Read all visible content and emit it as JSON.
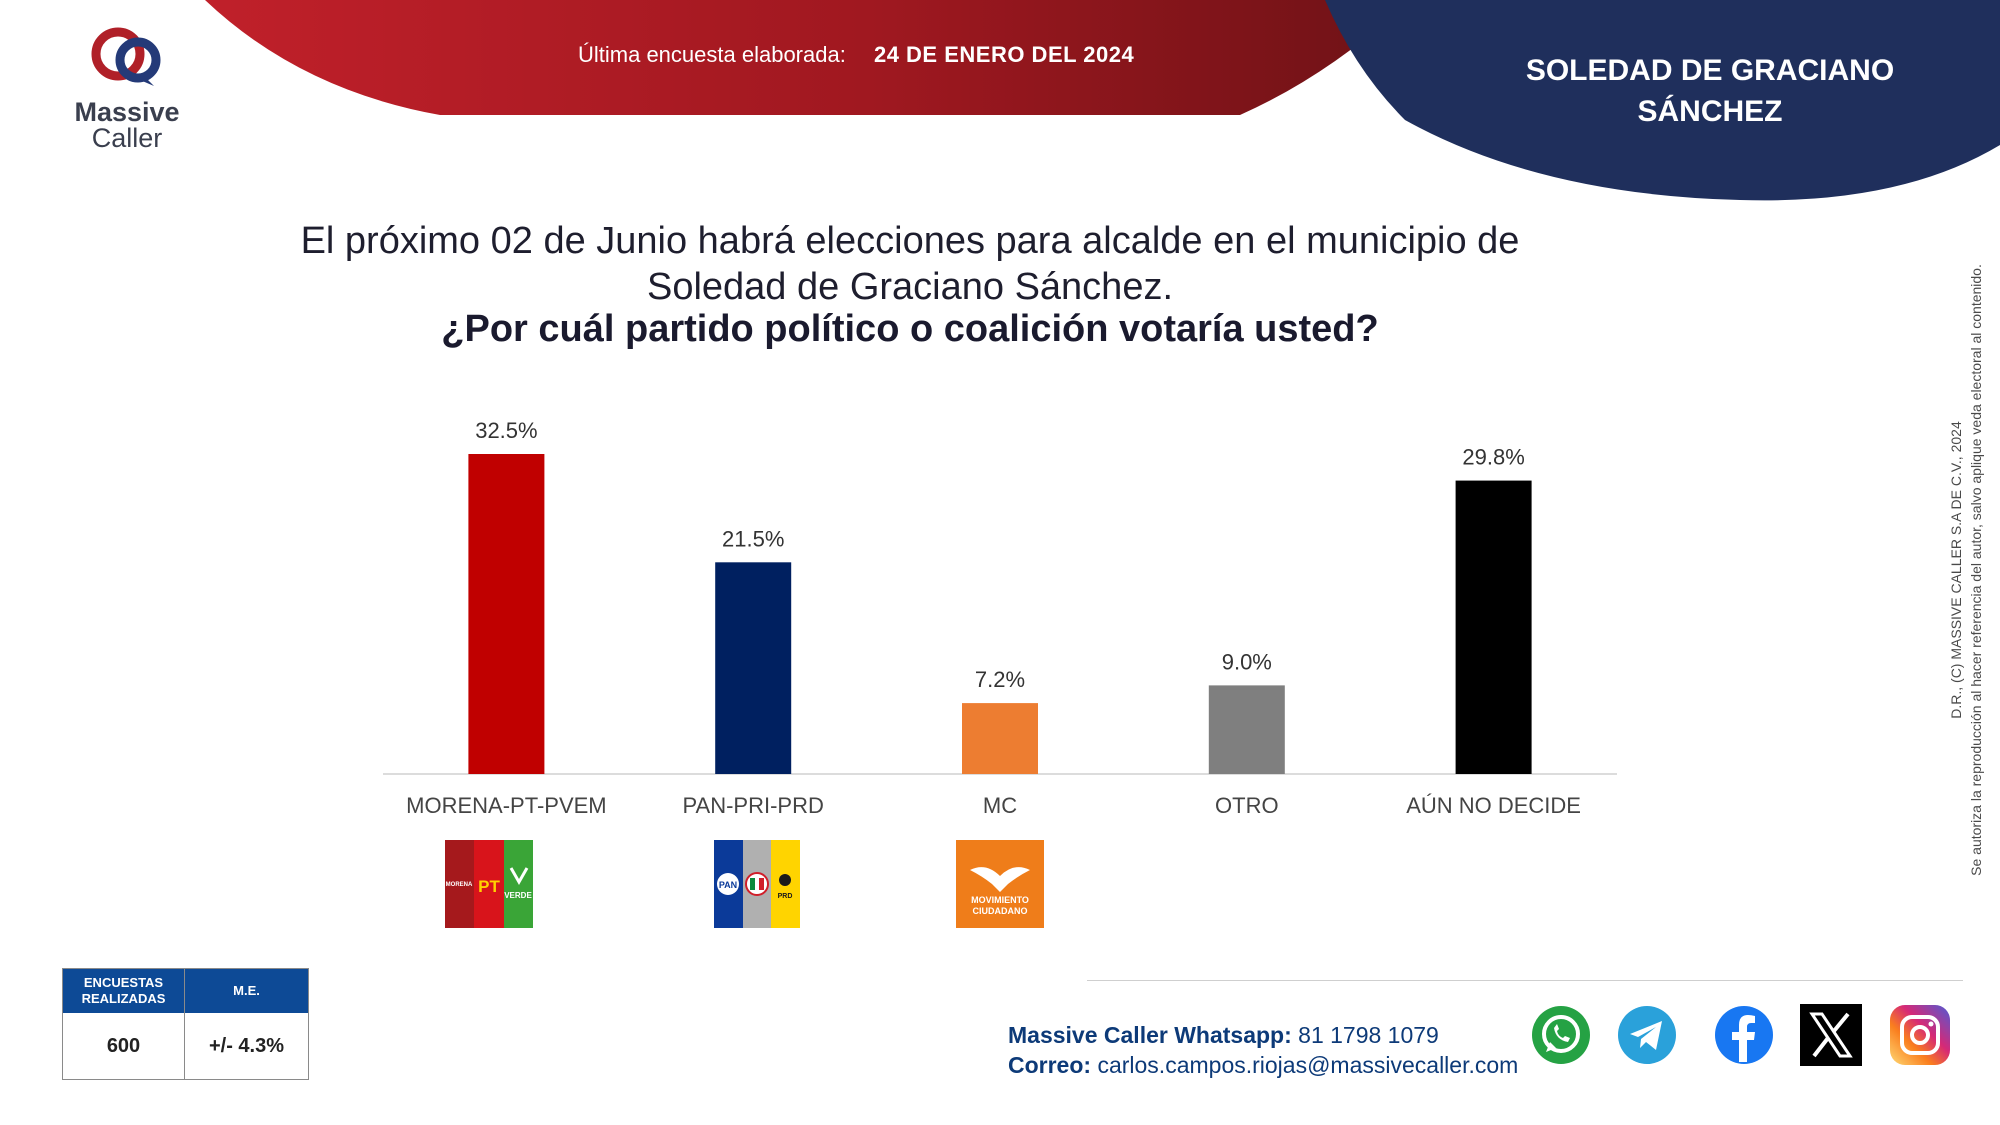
{
  "header": {
    "brand_line1": "Massive",
    "brand_line2": "Caller",
    "survey_label": "Última encuesta elaborada:",
    "survey_date": "24 DE ENERO DEL 2024",
    "location_line1": "SOLEDAD DE GRACIANO",
    "location_line2": "SÁNCHEZ",
    "colors": {
      "banner_red": "#a01820",
      "banner_navy": "#1f2f5c"
    }
  },
  "question": {
    "intro_line1": "El próximo 02 de Junio habrá elecciones para alcalde en el municipio de",
    "intro_line2": "Soledad de Graciano Sánchez.",
    "main": "¿Por cuál partido político o coalición votaría usted?"
  },
  "chart_data": {
    "type": "bar",
    "categories": [
      "MORENA-PT-PVEM",
      "PAN-PRI-PRD",
      "MC",
      "OTRO",
      "AÚN NO DECIDE"
    ],
    "values": [
      32.5,
      21.5,
      7.2,
      9.0,
      29.8
    ],
    "value_labels": [
      "32.5%",
      "21.5%",
      "7.2%",
      "9.0%",
      "29.8%"
    ],
    "colors": [
      "#c00000",
      "#002060",
      "#ed7d31",
      "#7f7f7f",
      "#000000"
    ],
    "ylim": [
      0,
      32.5
    ],
    "grid": false,
    "legend": "none"
  },
  "party_logos": {
    "morena_text": "MORENA",
    "pt_text": "PT",
    "verde_text": "VERDE",
    "pan_text": "PAN",
    "prd_text": "PRD",
    "mc_line1": "MOVIMIENTO",
    "mc_line2": "CIUDADANO"
  },
  "copyright": {
    "line1": "D.R., (C) MASSIVE CALLER S.A DE C.V., 2024",
    "line2": "Se autoriza la reproducción al hacer referencia del autor, salvo aplique veda electoral al contenido."
  },
  "stats": {
    "col1_header": "ENCUESTAS REALIZADAS",
    "col2_header": "M.E.",
    "col1_value": "600",
    "col2_value": "+/- 4.3%"
  },
  "contact": {
    "whatsapp_label": "Massive Caller Whatsapp:",
    "whatsapp_number": "81 1798 1079",
    "email_label": "Correo:",
    "email": "carlos.campos.riojas@massivecaller.com"
  },
  "social_icons": [
    "whatsapp-icon",
    "telegram-icon",
    "facebook-icon",
    "x-icon",
    "instagram-icon"
  ]
}
